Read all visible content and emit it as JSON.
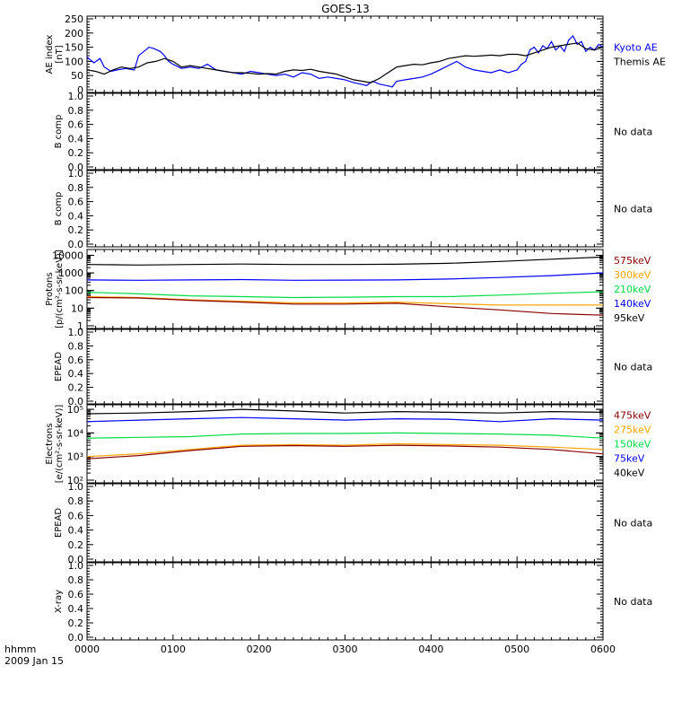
{
  "title": "GOES-13",
  "time_label": "hhmm",
  "date_label": "2009 Jan 15",
  "colors": {
    "axis": "#000000",
    "blue": "#0000ff",
    "black": "#000000",
    "green": "#00dd44",
    "orange": "#ffa500",
    "darkred": "#8b0000"
  },
  "chart_data": [
    {
      "id": "ae",
      "type": "line",
      "ylabel_lines": [
        "AE index",
        "[nT]"
      ],
      "ylim": [
        0,
        250
      ],
      "yticks": [
        0,
        50,
        100,
        150,
        200,
        250
      ],
      "ytick_labels": [
        "0",
        "50",
        "100",
        "150",
        "200",
        "250"
      ],
      "right_labels": [
        {
          "text": "Kyoto AE",
          "color": "#0000ff"
        },
        {
          "text": "Themis AE",
          "color": "#000000"
        }
      ],
      "series": [
        {
          "name": "Kyoto AE",
          "color": "#0000ff",
          "x": [
            0,
            8,
            15,
            20,
            28,
            35,
            45,
            55,
            60,
            66,
            72,
            78,
            85,
            90,
            95,
            100,
            110,
            120,
            130,
            140,
            150,
            160,
            170,
            180,
            190,
            200,
            210,
            220,
            230,
            240,
            250,
            260,
            270,
            280,
            290,
            300,
            310,
            318,
            325,
            332,
            340,
            348,
            355,
            360,
            370,
            380,
            390,
            400,
            410,
            420,
            430,
            440,
            450,
            460,
            470,
            480,
            490,
            500,
            505,
            510,
            515,
            520,
            525,
            530,
            535,
            540,
            545,
            550,
            555,
            560,
            565,
            570,
            575,
            580,
            585,
            590,
            595,
            600
          ],
          "values": [
            115,
            95,
            110,
            80,
            65,
            70,
            75,
            70,
            120,
            135,
            150,
            145,
            135,
            120,
            100,
            90,
            75,
            80,
            75,
            90,
            70,
            65,
            60,
            55,
            65,
            60,
            55,
            50,
            55,
            45,
            60,
            55,
            40,
            45,
            40,
            35,
            25,
            20,
            15,
            30,
            20,
            15,
            10,
            30,
            35,
            40,
            45,
            55,
            70,
            85,
            100,
            80,
            70,
            65,
            60,
            70,
            60,
            70,
            90,
            100,
            140,
            150,
            130,
            155,
            145,
            170,
            140,
            155,
            135,
            175,
            190,
            160,
            170,
            135,
            150,
            140,
            160,
            150
          ]
        },
        {
          "name": "Themis AE",
          "color": "#000000",
          "x": [
            0,
            10,
            20,
            30,
            40,
            50,
            60,
            70,
            80,
            90,
            100,
            110,
            120,
            130,
            140,
            150,
            160,
            170,
            180,
            190,
            200,
            210,
            220,
            230,
            240,
            250,
            260,
            270,
            280,
            290,
            300,
            310,
            320,
            330,
            340,
            350,
            360,
            370,
            380,
            390,
            400,
            410,
            420,
            430,
            440,
            450,
            460,
            470,
            480,
            490,
            500,
            510,
            520,
            530,
            540,
            550,
            560,
            570,
            580,
            590,
            600
          ],
          "values": [
            70,
            65,
            55,
            70,
            80,
            75,
            80,
            95,
            100,
            110,
            100,
            80,
            85,
            80,
            75,
            70,
            65,
            60,
            60,
            58,
            55,
            57,
            55,
            65,
            70,
            68,
            72,
            65,
            60,
            55,
            45,
            35,
            30,
            25,
            40,
            60,
            80,
            85,
            90,
            88,
            95,
            100,
            110,
            115,
            120,
            118,
            120,
            122,
            120,
            125,
            125,
            120,
            130,
            140,
            150,
            155,
            160,
            165,
            145,
            140,
            150
          ]
        }
      ]
    },
    {
      "id": "b1",
      "type": "line",
      "ylabel_lines": [
        "B comp"
      ],
      "ylim": [
        0,
        1
      ],
      "yticks": [
        0,
        0.2,
        0.4,
        0.6,
        0.8,
        1.0
      ],
      "ytick_labels": [
        "0.0",
        "0.2",
        "0.4",
        "0.6",
        "0.8",
        "1.0"
      ],
      "right_labels": [
        {
          "text": "No data",
          "color": "#000000"
        }
      ],
      "series": []
    },
    {
      "id": "b2",
      "type": "line",
      "ylabel_lines": [
        "B comp"
      ],
      "ylim": [
        0,
        1
      ],
      "yticks": [
        0,
        0.2,
        0.4,
        0.6,
        0.8,
        1.0
      ],
      "ytick_labels": [
        "0.0",
        "0.2",
        "0.4",
        "0.6",
        "0.8",
        "1.0"
      ],
      "right_labels": [
        {
          "text": "No data",
          "color": "#000000"
        }
      ],
      "series": []
    },
    {
      "id": "protons",
      "type": "line",
      "log": true,
      "ylabel_lines": [
        "Protons",
        "[p/(cm²-s-sr-keV)]"
      ],
      "ylim": [
        1,
        15000
      ],
      "yticks": [
        1,
        10,
        100,
        1000,
        10000
      ],
      "ytick_labels": [
        "1",
        "10",
        "100",
        "1000",
        "10000"
      ],
      "right_labels": [
        {
          "text": "575keV",
          "color": "#8b0000"
        },
        {
          "text": "300keV",
          "color": "#ffa500"
        },
        {
          "text": "210keV",
          "color": "#00dd44"
        },
        {
          "text": "140keV",
          "color": "#0000ff"
        },
        {
          "text": "95keV",
          "color": "#000000"
        }
      ],
      "series": [
        {
          "name": "95keV",
          "color": "#000000",
          "x": [
            0,
            60,
            120,
            180,
            240,
            300,
            360,
            420,
            480,
            540,
            600
          ],
          "values": [
            3000,
            2800,
            3000,
            3200,
            3000,
            3000,
            3100,
            3500,
            4500,
            6000,
            8000
          ]
        },
        {
          "name": "140keV",
          "color": "#0000ff",
          "x": [
            0,
            60,
            120,
            180,
            240,
            300,
            360,
            420,
            480,
            540,
            600
          ],
          "values": [
            400,
            380,
            400,
            420,
            380,
            390,
            400,
            450,
            550,
            700,
            1000
          ]
        },
        {
          "name": "210keV",
          "color": "#00dd44",
          "x": [
            0,
            60,
            120,
            180,
            240,
            300,
            360,
            420,
            480,
            540,
            600
          ],
          "values": [
            80,
            65,
            50,
            45,
            40,
            42,
            45,
            45,
            55,
            70,
            85
          ]
        },
        {
          "name": "300keV",
          "color": "#ffa500",
          "x": [
            0,
            60,
            120,
            180,
            240,
            300,
            360,
            420,
            480,
            540,
            600
          ],
          "values": [
            45,
            40,
            30,
            25,
            20,
            20,
            22,
            18,
            15,
            15,
            15
          ]
        },
        {
          "name": "575keV",
          "color": "#8b0000",
          "x": [
            0,
            60,
            120,
            180,
            240,
            300,
            360,
            420,
            480,
            540,
            600
          ],
          "values": [
            40,
            38,
            28,
            22,
            17,
            17,
            19,
            12,
            8,
            5,
            4
          ]
        }
      ]
    },
    {
      "id": "epead1",
      "type": "line",
      "ylabel_lines": [
        "EPEAD"
      ],
      "ylim": [
        0,
        1
      ],
      "yticks": [
        0,
        0.2,
        0.4,
        0.6,
        0.8,
        1.0
      ],
      "ytick_labels": [
        "0.0",
        "0.2",
        "0.4",
        "0.6",
        "0.8",
        "1.0"
      ],
      "right_labels": [
        {
          "text": "No data",
          "color": "#000000"
        }
      ],
      "series": []
    },
    {
      "id": "electrons",
      "type": "line",
      "log": true,
      "ylabel_lines": [
        "Electrons",
        "[e/(cm²-s-sr-keV)]"
      ],
      "ylim": [
        100,
        120000
      ],
      "yticks": [
        100,
        1000,
        10000,
        100000
      ],
      "ytick_labels": [
        "10²",
        "10³",
        "10⁴",
        "10⁵"
      ],
      "right_labels": [
        {
          "text": "475keV",
          "color": "#8b0000"
        },
        {
          "text": "275keV",
          "color": "#ffa500"
        },
        {
          "text": "150keV",
          "color": "#00dd44"
        },
        {
          "text": "75keV",
          "color": "#0000ff"
        },
        {
          "text": "40keV",
          "color": "#000000"
        }
      ],
      "series": [
        {
          "name": "40keV",
          "color": "#000000",
          "x": [
            0,
            60,
            120,
            180,
            240,
            300,
            360,
            420,
            480,
            540,
            600
          ],
          "values": [
            65000,
            70000,
            80000,
            100000,
            85000,
            70000,
            80000,
            75000,
            70000,
            80000,
            75000
          ]
        },
        {
          "name": "75keV",
          "color": "#0000ff",
          "x": [
            0,
            60,
            120,
            180,
            240,
            300,
            360,
            420,
            480,
            540,
            600
          ],
          "values": [
            30000,
            35000,
            40000,
            45000,
            40000,
            35000,
            40000,
            38000,
            30000,
            40000,
            35000
          ]
        },
        {
          "name": "150keV",
          "color": "#00dd44",
          "x": [
            0,
            60,
            120,
            180,
            240,
            300,
            360,
            420,
            480,
            540,
            600
          ],
          "values": [
            6000,
            6500,
            7000,
            9000,
            9500,
            9500,
            10000,
            9500,
            9000,
            8000,
            6000
          ]
        },
        {
          "name": "275keV",
          "color": "#ffa500",
          "x": [
            0,
            60,
            120,
            180,
            240,
            300,
            360,
            420,
            480,
            540,
            600
          ],
          "values": [
            1000,
            1300,
            2000,
            3000,
            3200,
            3000,
            3500,
            3200,
            3000,
            2500,
            2000
          ]
        },
        {
          "name": "475keV",
          "color": "#8b0000",
          "x": [
            0,
            60,
            120,
            180,
            240,
            300,
            360,
            420,
            480,
            540,
            600
          ],
          "values": [
            800,
            1100,
            1800,
            2700,
            2900,
            2700,
            3000,
            2800,
            2500,
            2000,
            1300
          ]
        }
      ]
    },
    {
      "id": "epead2",
      "type": "line",
      "ylabel_lines": [
        "EPEAD"
      ],
      "ylim": [
        0,
        1
      ],
      "yticks": [
        0,
        0.2,
        0.4,
        0.6,
        0.8,
        1.0
      ],
      "ytick_labels": [
        "0.0",
        "0.2",
        "0.4",
        "0.6",
        "0.8",
        "1.0"
      ],
      "right_labels": [
        {
          "text": "No data",
          "color": "#000000"
        }
      ],
      "series": []
    },
    {
      "id": "xray",
      "type": "line",
      "ylabel_lines": [
        "X-ray"
      ],
      "ylim": [
        0,
        1
      ],
      "yticks": [
        0,
        0.2,
        0.4,
        0.6,
        0.8,
        1.0
      ],
      "ytick_labels": [
        "0.0",
        "0.2",
        "0.4",
        "0.6",
        "0.8",
        "1.0"
      ],
      "right_labels": [
        {
          "text": "No data",
          "color": "#000000"
        }
      ],
      "series": []
    }
  ],
  "x_axis": {
    "range": [
      0,
      600
    ],
    "ticks": [
      0,
      100,
      200,
      300,
      400,
      500,
      600
    ],
    "tick_labels": [
      "0000",
      "0100",
      "0200",
      "0300",
      "0400",
      "0500",
      "0600"
    ]
  }
}
